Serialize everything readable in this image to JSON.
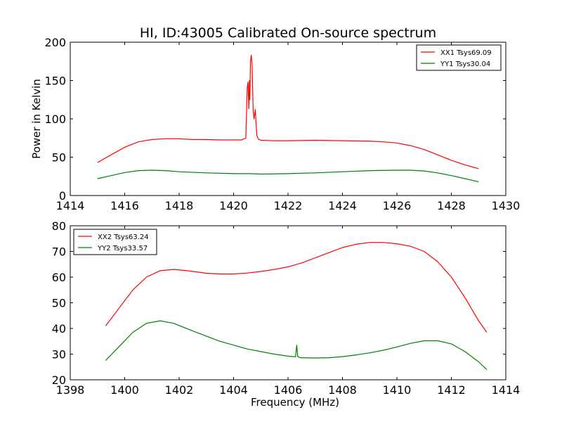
{
  "figure": {
    "title": "HI, ID:43005 Calibrated On-source spectrum"
  },
  "chart_data": [
    {
      "type": "line",
      "title": "HI, ID:43005 Calibrated On-source spectrum",
      "xlabel": "",
      "ylabel": "Power in Kelvin",
      "xlim": [
        1414,
        1430
      ],
      "ylim": [
        0,
        200
      ],
      "xticks": [
        1414,
        1416,
        1418,
        1420,
        1422,
        1424,
        1426,
        1428,
        1430
      ],
      "yticks": [
        0,
        50,
        100,
        150,
        200
      ],
      "grid": false,
      "legend_position": "top-right",
      "series": [
        {
          "name": "XX1 Tsys69.09",
          "color": "#ff0000",
          "x": [
            1415.0,
            1415.5,
            1416.0,
            1416.5,
            1417.0,
            1417.5,
            1418.0,
            1418.5,
            1419.0,
            1419.5,
            1420.0,
            1420.3,
            1420.45,
            1420.5,
            1420.53,
            1420.56,
            1420.58,
            1420.6,
            1420.62,
            1420.65,
            1420.68,
            1420.72,
            1420.75,
            1420.8,
            1420.83,
            1420.86,
            1420.9,
            1421.0,
            1421.5,
            1422.0,
            1423.0,
            1424.0,
            1425.0,
            1425.5,
            1426.0,
            1426.5,
            1427.0,
            1427.5,
            1428.0,
            1428.5,
            1429.0
          ],
          "values": [
            43,
            53,
            63,
            70,
            73,
            74,
            74,
            73,
            73,
            72.5,
            72.5,
            72.5,
            75,
            140,
            148,
            113,
            150,
            125,
            175,
            183,
            170,
            110,
            100,
            112,
            90,
            78,
            74,
            72,
            71.5,
            71.5,
            72,
            71.5,
            71,
            70,
            68.5,
            65,
            60,
            53,
            46,
            40,
            35
          ]
        },
        {
          "name": "YY1 Tsys30.04",
          "color": "#008000",
          "x": [
            1415.0,
            1415.5,
            1416.0,
            1416.5,
            1417.0,
            1417.5,
            1418.0,
            1419.0,
            1420.0,
            1420.6,
            1421.0,
            1422.0,
            1423.0,
            1424.0,
            1425.0,
            1426.0,
            1426.5,
            1427.0,
            1427.5,
            1428.0,
            1428.5,
            1429.0
          ],
          "values": [
            22,
            26,
            30,
            32.5,
            33,
            32.5,
            31,
            29.5,
            28.5,
            28.5,
            28,
            28.5,
            29.5,
            31,
            32.5,
            33,
            33,
            32,
            29.5,
            26,
            22,
            18
          ]
        }
      ]
    },
    {
      "type": "line",
      "xlabel": "Frequency (MHz)",
      "ylabel": "",
      "xlim": [
        1398,
        1414
      ],
      "ylim": [
        20,
        80
      ],
      "xticks": [
        1398,
        1400,
        1402,
        1404,
        1406,
        1408,
        1410,
        1412,
        1414
      ],
      "yticks": [
        20,
        30,
        40,
        50,
        60,
        70,
        80
      ],
      "grid": false,
      "legend_position": "top-left",
      "series": [
        {
          "name": "XX2 Tsys63.24",
          "color": "#ff0000",
          "x": [
            1399.3,
            1399.8,
            1400.3,
            1400.8,
            1401.3,
            1401.8,
            1402.3,
            1403.0,
            1403.5,
            1404.0,
            1404.5,
            1405.0,
            1405.5,
            1406.0,
            1406.5,
            1407.0,
            1407.5,
            1408.0,
            1408.5,
            1409.0,
            1409.5,
            1410.0,
            1410.5,
            1411.0,
            1411.5,
            1412.0,
            1412.5,
            1413.0,
            1413.3
          ],
          "values": [
            41,
            48,
            55,
            60,
            62.5,
            63,
            62.5,
            61.5,
            61.2,
            61.2,
            61.6,
            62.2,
            63,
            64,
            65.5,
            67.5,
            69.5,
            71.5,
            72.8,
            73.5,
            73.5,
            73,
            72,
            70,
            66,
            60,
            52,
            43,
            38.5
          ]
        },
        {
          "name": "YY2 Tsys33.57",
          "color": "#008000",
          "x": [
            1399.3,
            1399.8,
            1400.3,
            1400.8,
            1401.3,
            1401.8,
            1402.5,
            1403.0,
            1403.5,
            1404.0,
            1404.5,
            1405.0,
            1405.5,
            1406.0,
            1406.2,
            1406.28,
            1406.32,
            1406.36,
            1406.45,
            1407.0,
            1407.5,
            1408.0,
            1408.5,
            1409.0,
            1409.5,
            1410.0,
            1410.5,
            1411.0,
            1411.5,
            1412.0,
            1412.5,
            1413.0,
            1413.3
          ],
          "values": [
            27.5,
            33,
            38.5,
            42,
            43,
            42,
            39,
            37,
            35,
            33.5,
            32,
            31,
            30,
            29.2,
            29,
            29,
            33.5,
            29,
            28.6,
            28.5,
            28.6,
            29,
            29.7,
            30.5,
            31.5,
            32.8,
            34.2,
            35.2,
            35.2,
            34,
            31,
            27,
            24
          ]
        }
      ]
    }
  ]
}
